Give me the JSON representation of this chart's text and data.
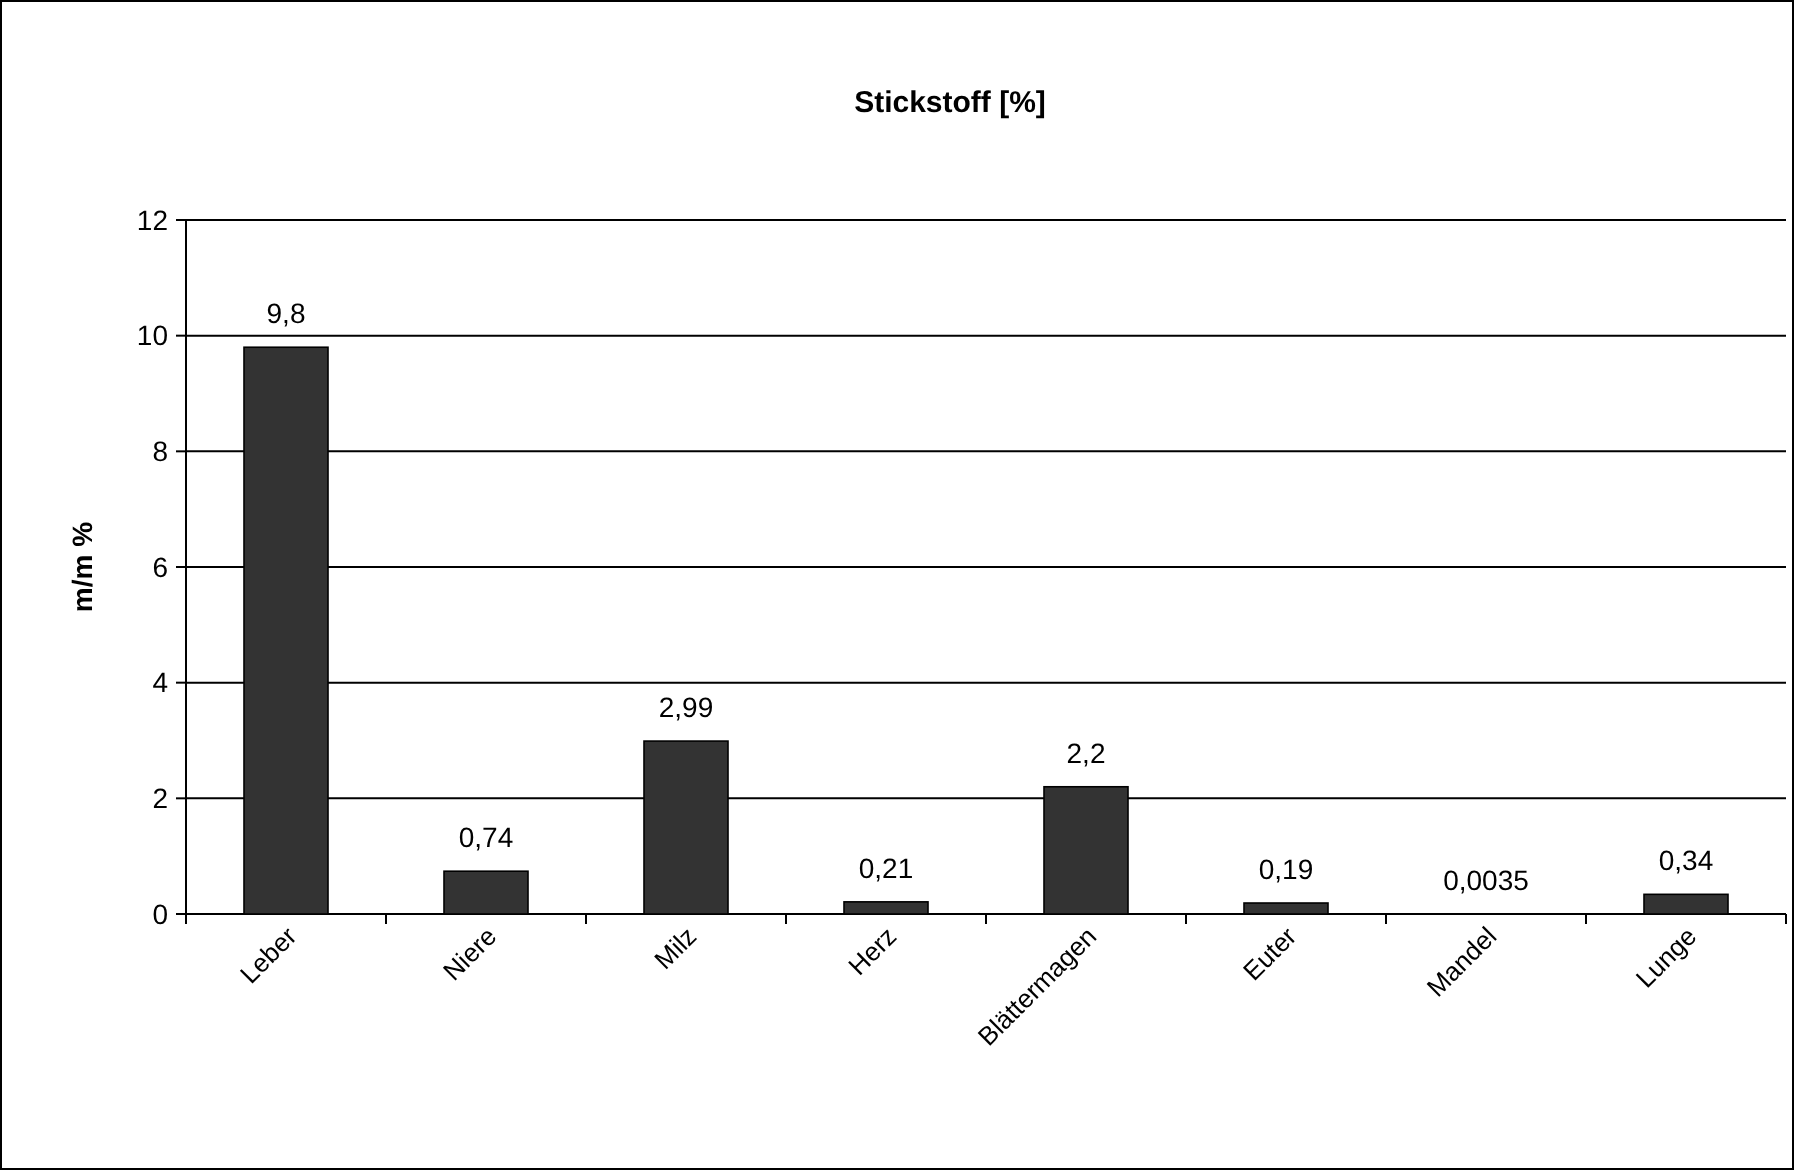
{
  "chart_data": {
    "type": "bar",
    "title": "Stickstoff [%]",
    "ylabel": "m/m %",
    "categories": [
      "Leber",
      "Niere",
      "Milz",
      "Herz",
      "Blättermagen",
      "Euter",
      "Mandel",
      "Lunge"
    ],
    "values": [
      9.8,
      0.74,
      2.99,
      0.21,
      2.2,
      0.19,
      0.0035,
      0.34
    ],
    "value_labels": [
      "9,8",
      "0,74",
      "2,99",
      "0,21",
      "2,2",
      "0,19",
      "0,0035",
      "0,34"
    ],
    "color": "#333333",
    "ylim": [
      0,
      12
    ],
    "yticks": [
      0,
      2,
      4,
      6,
      8,
      10,
      12
    ],
    "grid": "y"
  }
}
